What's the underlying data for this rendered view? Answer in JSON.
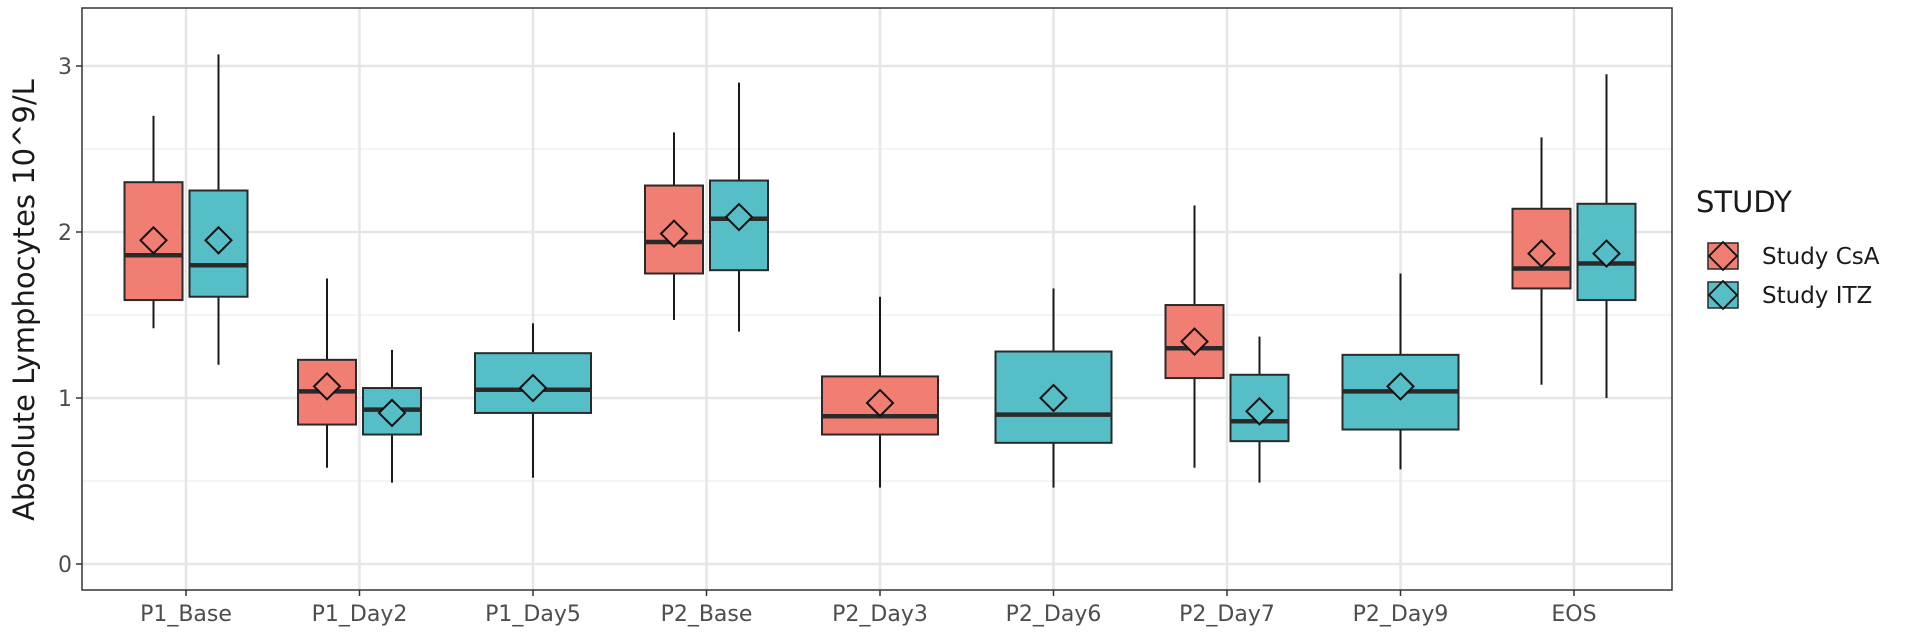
{
  "chart_data": {
    "type": "boxplot",
    "title": "",
    "xlabel": "",
    "ylabel": "Absolute Lymphocytes 10^9/L",
    "ylim": [
      -0.18,
      3.3
    ],
    "yticks": [
      "0",
      "1",
      "2",
      "3"
    ],
    "ytick_values": [
      0,
      1,
      2,
      3
    ],
    "grid": true,
    "legend": {
      "title": "STUDY",
      "placement": "right",
      "entries": [
        "Study CsA",
        "Study ITZ"
      ]
    },
    "colors": {
      "Study CsA": "#F07E72",
      "Study ITZ": "#55BEC6"
    },
    "categories": [
      "P1_Base",
      "P1_Day2",
      "P1_Day5",
      "P2_Base",
      "P2_Day3",
      "P2_Day6",
      "P2_Day7",
      "P2_Day9",
      "EOS"
    ],
    "series": [
      {
        "name": "Study CsA",
        "boxes": [
          {
            "category": "P1_Base",
            "whisker_low": 1.42,
            "q1": 1.59,
            "median": 1.86,
            "q3": 2.3,
            "whisker_high": 2.7,
            "mean": 1.95
          },
          {
            "category": "P1_Day2",
            "whisker_low": 0.58,
            "q1": 0.84,
            "median": 1.04,
            "q3": 1.23,
            "whisker_high": 1.72,
            "mean": 1.07
          },
          {
            "category": "P2_Base",
            "whisker_low": 1.47,
            "q1": 1.75,
            "median": 1.94,
            "q3": 2.28,
            "whisker_high": 2.6,
            "mean": 1.99
          },
          {
            "category": "P2_Day3",
            "whisker_low": 0.46,
            "q1": 0.78,
            "median": 0.89,
            "q3": 1.13,
            "whisker_high": 1.61,
            "mean": 0.97
          },
          {
            "category": "P2_Day7",
            "whisker_low": 0.58,
            "q1": 1.12,
            "median": 1.3,
            "q3": 1.56,
            "whisker_high": 2.16,
            "mean": 1.34
          },
          {
            "category": "EOS",
            "whisker_low": 1.08,
            "q1": 1.66,
            "median": 1.78,
            "q3": 2.14,
            "whisker_high": 2.57,
            "mean": 1.87
          }
        ]
      },
      {
        "name": "Study ITZ",
        "boxes": [
          {
            "category": "P1_Base",
            "whisker_low": 1.2,
            "q1": 1.61,
            "median": 1.8,
            "q3": 2.25,
            "whisker_high": 3.07,
            "mean": 1.95
          },
          {
            "category": "P1_Day2",
            "whisker_low": 0.49,
            "q1": 0.78,
            "median": 0.93,
            "q3": 1.06,
            "whisker_high": 1.29,
            "mean": 0.91
          },
          {
            "category": "P1_Day5",
            "whisker_low": 0.52,
            "q1": 0.91,
            "median": 1.05,
            "q3": 1.27,
            "whisker_high": 1.45,
            "mean": 1.06
          },
          {
            "category": "P2_Base",
            "whisker_low": 1.4,
            "q1": 1.77,
            "median": 2.08,
            "q3": 2.31,
            "whisker_high": 2.9,
            "mean": 2.09
          },
          {
            "category": "P2_Day6",
            "whisker_low": 0.46,
            "q1": 0.73,
            "median": 0.9,
            "q3": 1.28,
            "whisker_high": 1.66,
            "mean": 1.0
          },
          {
            "category": "P2_Day7",
            "whisker_low": 0.49,
            "q1": 0.74,
            "median": 0.86,
            "q3": 1.14,
            "whisker_high": 1.37,
            "mean": 0.92
          },
          {
            "category": "P2_Day9",
            "whisker_low": 0.57,
            "q1": 0.81,
            "median": 1.04,
            "q3": 1.26,
            "whisker_high": 1.75,
            "mean": 1.07
          },
          {
            "category": "EOS",
            "whisker_low": 1.0,
            "q1": 1.59,
            "median": 1.81,
            "q3": 2.17,
            "whisker_high": 2.95,
            "mean": 1.87
          }
        ]
      }
    ]
  }
}
